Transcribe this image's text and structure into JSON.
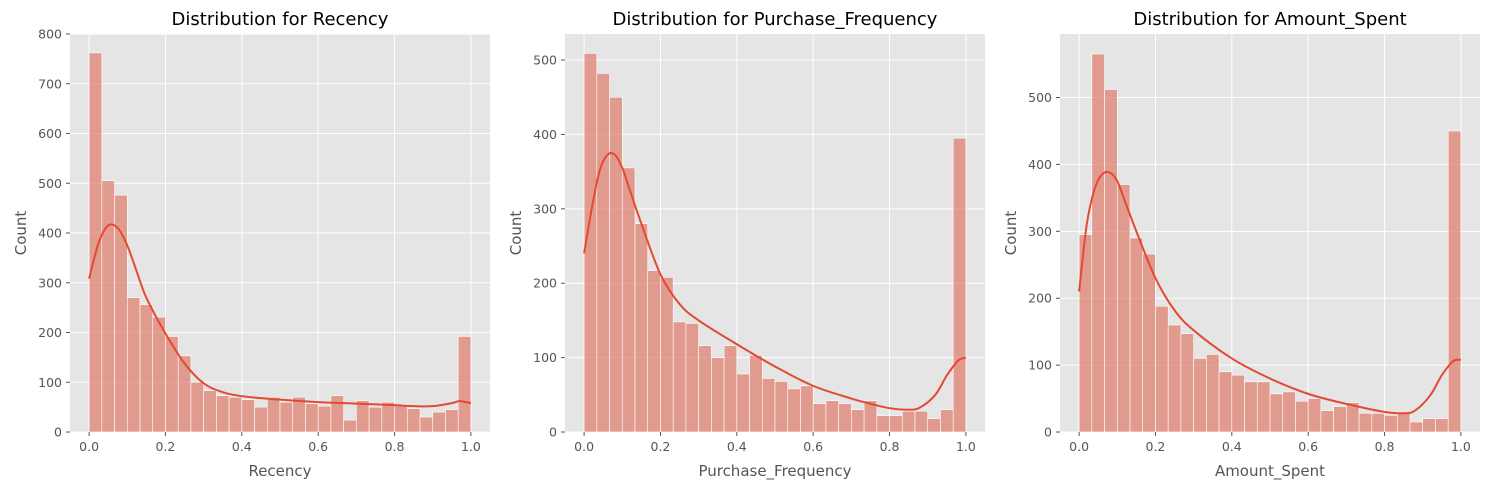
{
  "chart_data": [
    {
      "type": "bar",
      "title": "Distribution for Recency",
      "xlabel": "Recency",
      "ylabel": "Count",
      "xlim": [
        -0.05,
        1.05
      ],
      "ylim": [
        0,
        800
      ],
      "xticks": [
        0.0,
        0.2,
        0.4,
        0.6,
        0.8,
        1.0
      ],
      "xtick_labels": [
        "0.0",
        "0.2",
        "0.4",
        "0.6",
        "0.8",
        "1.0"
      ],
      "yticks": [
        0,
        100,
        200,
        300,
        400,
        500,
        600,
        700,
        800
      ],
      "ytick_labels": [
        "0",
        "100",
        "200",
        "300",
        "400",
        "500",
        "600",
        "700",
        "800"
      ],
      "grid": true,
      "bins": 30,
      "bin_range": [
        0,
        1
      ],
      "values": [
        762,
        505,
        476,
        270,
        256,
        231,
        192,
        153,
        100,
        83,
        73,
        70,
        65,
        50,
        70,
        60,
        70,
        57,
        52,
        73,
        24,
        63,
        50,
        60,
        55,
        47,
        30,
        40,
        45,
        192
      ],
      "kde": {
        "x": [
          0.0,
          0.025,
          0.05,
          0.075,
          0.1,
          0.125,
          0.15,
          0.2,
          0.25,
          0.3,
          0.35,
          0.4,
          0.5,
          0.6,
          0.7,
          0.8,
          0.85,
          0.9,
          0.95,
          0.97,
          1.0
        ],
        "y": [
          308,
          380,
          415,
          410,
          375,
          322,
          270,
          198,
          138,
          98,
          80,
          72,
          65,
          60,
          57,
          54,
          52,
          52,
          58,
          62,
          58
        ]
      },
      "colors": {
        "bar": "#e07b6a",
        "kde": "#e24a33",
        "background": "#e5e5e5"
      }
    },
    {
      "type": "bar",
      "title": "Distribution for Purchase_Frequency",
      "xlabel": "Purchase_Frequency",
      "ylabel": "Count",
      "xlim": [
        -0.05,
        1.05
      ],
      "ylim": [
        0,
        535
      ],
      "xticks": [
        0.0,
        0.2,
        0.4,
        0.6,
        0.8,
        1.0
      ],
      "xtick_labels": [
        "0.0",
        "0.2",
        "0.4",
        "0.6",
        "0.8",
        "1.0"
      ],
      "yticks": [
        0,
        100,
        200,
        300,
        400,
        500
      ],
      "ytick_labels": [
        "0",
        "100",
        "200",
        "300",
        "400",
        "500"
      ],
      "grid": true,
      "bins": 30,
      "bin_range": [
        0,
        1
      ],
      "values": [
        509,
        482,
        450,
        355,
        280,
        217,
        208,
        148,
        146,
        116,
        100,
        116,
        78,
        103,
        72,
        68,
        58,
        62,
        38,
        42,
        38,
        30,
        42,
        22,
        22,
        28,
        28,
        18,
        30,
        395
      ],
      "kde": {
        "x": [
          0.0,
          0.02,
          0.04,
          0.06,
          0.08,
          0.1,
          0.12,
          0.15,
          0.2,
          0.25,
          0.3,
          0.4,
          0.5,
          0.6,
          0.7,
          0.75,
          0.8,
          0.85,
          0.88,
          0.92,
          0.95,
          0.98,
          1.0
        ],
        "y": [
          240,
          300,
          350,
          372,
          373,
          355,
          325,
          280,
          212,
          172,
          150,
          118,
          88,
          62,
          45,
          38,
          32,
          30,
          33,
          50,
          76,
          96,
          100
        ]
      },
      "colors": {
        "bar": "#e07b6a",
        "kde": "#e24a33",
        "background": "#e5e5e5"
      }
    },
    {
      "type": "bar",
      "title": "Distribution for Amount_Spent",
      "xlabel": "Amount_Spent",
      "ylabel": "Count",
      "xlim": [
        -0.05,
        1.05
      ],
      "ylim": [
        0,
        595
      ],
      "xticks": [
        0.0,
        0.2,
        0.4,
        0.6,
        0.8,
        1.0
      ],
      "xtick_labels": [
        "0.0",
        "0.2",
        "0.4",
        "0.6",
        "0.8",
        "1.0"
      ],
      "yticks": [
        0,
        100,
        200,
        300,
        400,
        500
      ],
      "ytick_labels": [
        "0",
        "100",
        "200",
        "300",
        "400",
        "500"
      ],
      "grid": true,
      "bins": 30,
      "bin_range": [
        0,
        1
      ],
      "values": [
        295,
        565,
        512,
        370,
        290,
        266,
        188,
        160,
        147,
        110,
        116,
        90,
        85,
        75,
        75,
        57,
        60,
        46,
        50,
        32,
        38,
        44,
        28,
        28,
        25,
        28,
        15,
        20,
        20,
        450
      ],
      "kde": {
        "x": [
          0.0,
          0.02,
          0.04,
          0.06,
          0.08,
          0.1,
          0.12,
          0.15,
          0.2,
          0.25,
          0.3,
          0.4,
          0.5,
          0.6,
          0.7,
          0.8,
          0.85,
          0.88,
          0.92,
          0.95,
          0.98,
          1.0
        ],
        "y": [
          210,
          310,
          362,
          385,
          388,
          375,
          345,
          300,
          230,
          182,
          152,
          110,
          80,
          57,
          42,
          30,
          28,
          32,
          55,
          85,
          106,
          108
        ]
      },
      "colors": {
        "bar": "#e07b6a",
        "kde": "#e24a33",
        "background": "#e5e5e5"
      }
    }
  ]
}
